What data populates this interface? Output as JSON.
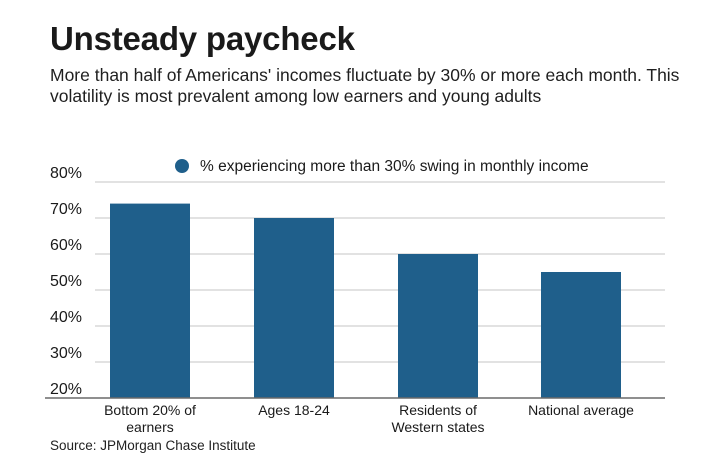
{
  "header": {
    "title": "Unsteady paycheck",
    "subtitle": "More than half of Americans' incomes fluctuate by 30% or more each month. This volatility is most prevalent among low earners and young adults"
  },
  "footer": {
    "source": "Source: JPMorgan Chase Institute"
  },
  "colors": {
    "bar": "#1f5f8b",
    "grid": "#d9d9d9",
    "axis": "#6a6a6a",
    "text": "#1a1a1a"
  },
  "chart_data": {
    "type": "bar",
    "categories": [
      [
        "Bottom 20% of",
        "earners"
      ],
      [
        "Ages 18-24"
      ],
      [
        "Residents of",
        "Western states"
      ],
      [
        "National average"
      ]
    ],
    "series": [
      {
        "name": "% experiencing more than 30% swing in monthly income",
        "values": [
          74,
          70,
          60,
          55
        ]
      }
    ],
    "ylim": [
      20,
      80
    ],
    "yticks": [
      80,
      70,
      60,
      50,
      40,
      30,
      20
    ],
    "ytick_labels": [
      "80%",
      "70%",
      "60%",
      "50%",
      "40%",
      "30%",
      "20%"
    ],
    "grid": true,
    "legend": "top-right",
    "xlabel": "",
    "ylabel": ""
  }
}
